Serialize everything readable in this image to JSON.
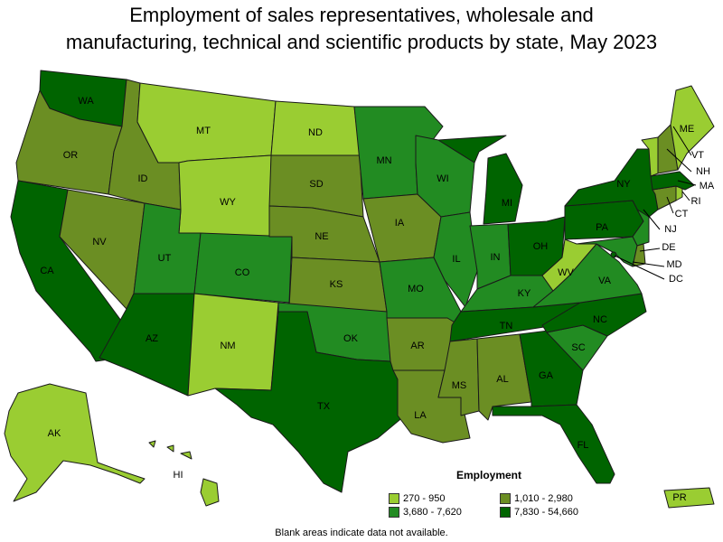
{
  "title_line1": "Employment of sales representatives, wholesale and",
  "title_line2": "manufacturing, technical and scientific products by state, May 2023",
  "legend": {
    "title": "Employment",
    "bins": [
      {
        "label": "270 - 950",
        "color": "#9acd32"
      },
      {
        "label": "1,010 - 2,980",
        "color": "#6b8e23"
      },
      {
        "label": "3,680 - 7,620",
        "color": "#228b22"
      },
      {
        "label": "7,830 - 54,660",
        "color": "#006400"
      }
    ]
  },
  "footnote": "Blank areas indicate data not available.",
  "states": {
    "WA": 3,
    "OR": 1,
    "CA": 3,
    "NV": 1,
    "ID": 1,
    "MT": 0,
    "WY": 0,
    "UT": 2,
    "CO": 2,
    "AZ": 3,
    "NM": 0,
    "ND": 0,
    "SD": 1,
    "NE": 1,
    "KS": 1,
    "OK": 2,
    "TX": 3,
    "MN": 2,
    "IA": 1,
    "MO": 2,
    "AR": 1,
    "LA": 1,
    "WI": 2,
    "IL": 2,
    "MI": 3,
    "IN": 2,
    "OH": 3,
    "KY": 2,
    "TN": 3,
    "MS": 1,
    "AL": 1,
    "GA": 3,
    "FL": 3,
    "SC": 2,
    "NC": 3,
    "VA": 2,
    "WV": 0,
    "PA": 3,
    "NY": 3,
    "NJ": 2,
    "DE": 1,
    "MD": 2,
    "DC": 3,
    "CT": 1,
    "RI": 0,
    "MA": 3,
    "VT": 0,
    "NH": 1,
    "ME": 0,
    "AK": 0,
    "HI": 0,
    "PR": 0
  }
}
